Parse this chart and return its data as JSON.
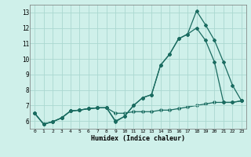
{
  "xlabel": "Humidex (Indice chaleur)",
  "bg_color": "#cff0ea",
  "grid_color": "#aad8d0",
  "line_color": "#1a6b60",
  "xlim": [
    -0.5,
    23.5
  ],
  "ylim": [
    5.5,
    13.5
  ],
  "xticks": [
    0,
    1,
    2,
    3,
    4,
    5,
    6,
    7,
    8,
    9,
    10,
    11,
    12,
    13,
    14,
    15,
    16,
    17,
    18,
    19,
    20,
    21,
    22,
    23
  ],
  "yticks": [
    6,
    7,
    8,
    9,
    10,
    11,
    12,
    13
  ],
  "series1_x": [
    0,
    1,
    2,
    3,
    4,
    5,
    6,
    7,
    8,
    9,
    10,
    11,
    12,
    13,
    14,
    15,
    16,
    17,
    18,
    19,
    20,
    21,
    22,
    23
  ],
  "series1_y": [
    6.5,
    5.8,
    5.95,
    6.2,
    6.65,
    6.7,
    6.8,
    6.85,
    6.85,
    5.95,
    6.3,
    7.0,
    7.5,
    7.7,
    9.6,
    10.3,
    11.3,
    11.6,
    13.1,
    12.2,
    11.2,
    9.8,
    8.3,
    7.3
  ],
  "series2_x": [
    0,
    1,
    2,
    3,
    4,
    5,
    6,
    7,
    8,
    9,
    10,
    11,
    12,
    13,
    14,
    15,
    16,
    17,
    18,
    19,
    20,
    21,
    22,
    23
  ],
  "series2_y": [
    6.5,
    5.8,
    5.95,
    6.2,
    6.65,
    6.7,
    6.8,
    6.85,
    6.85,
    6.0,
    6.3,
    7.0,
    7.5,
    7.7,
    9.6,
    10.3,
    11.3,
    11.6,
    12.0,
    11.2,
    9.8,
    7.2,
    7.2,
    7.3
  ],
  "series3_x": [
    0,
    1,
    2,
    3,
    4,
    5,
    6,
    7,
    8,
    9,
    10,
    11,
    12,
    13,
    14,
    15,
    16,
    17,
    18,
    19,
    20,
    21,
    22,
    23
  ],
  "series3_y": [
    6.5,
    5.8,
    5.95,
    6.2,
    6.65,
    6.7,
    6.8,
    6.85,
    6.85,
    6.5,
    6.5,
    6.6,
    6.6,
    6.6,
    6.7,
    6.7,
    6.8,
    6.9,
    7.0,
    7.1,
    7.2,
    7.2,
    7.2,
    7.3
  ],
  "marker": "D",
  "markersize": 2.0,
  "linewidth": 0.9
}
